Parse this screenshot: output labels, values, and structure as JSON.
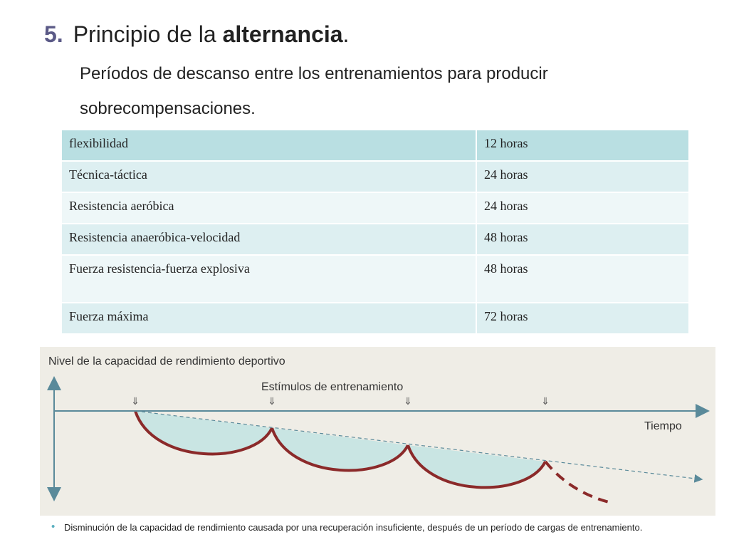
{
  "header": {
    "number": "5.",
    "title": "Principio de la",
    "title_bold": "alternancia",
    "title_end": ".",
    "subtitle_line1": "Períodos de descanso entre los entrenamientos para producir",
    "subtitle_line2": "sobrecompensaciones."
  },
  "table": {
    "rows": [
      [
        "flexibilidad",
        "12 horas"
      ],
      [
        "Técnica-táctica",
        "24 horas"
      ],
      [
        "Resistencia aeróbica",
        "24 horas"
      ],
      [
        "Resistencia anaeróbica-velocidad",
        "48 horas"
      ],
      [
        "Fuerza resistencia-fuerza explosiva",
        "48 horas"
      ],
      [
        "Fuerza máxima",
        "72 horas"
      ]
    ]
  },
  "diagram": {
    "y_label": "Nivel de la capacidad de rendimiento deportivo",
    "stimuli_label": "Estímulos de entrenamiento",
    "stimuli_markers": [
      "⇓",
      "⇓",
      "⇓",
      "⇓"
    ],
    "x_label": "Tiempo",
    "caption_bullet": "•",
    "caption": "Disminución de la capacidad de rendimiento causada por una recuperación insuficiente, después de un período de cargas de entrenamiento."
  }
}
